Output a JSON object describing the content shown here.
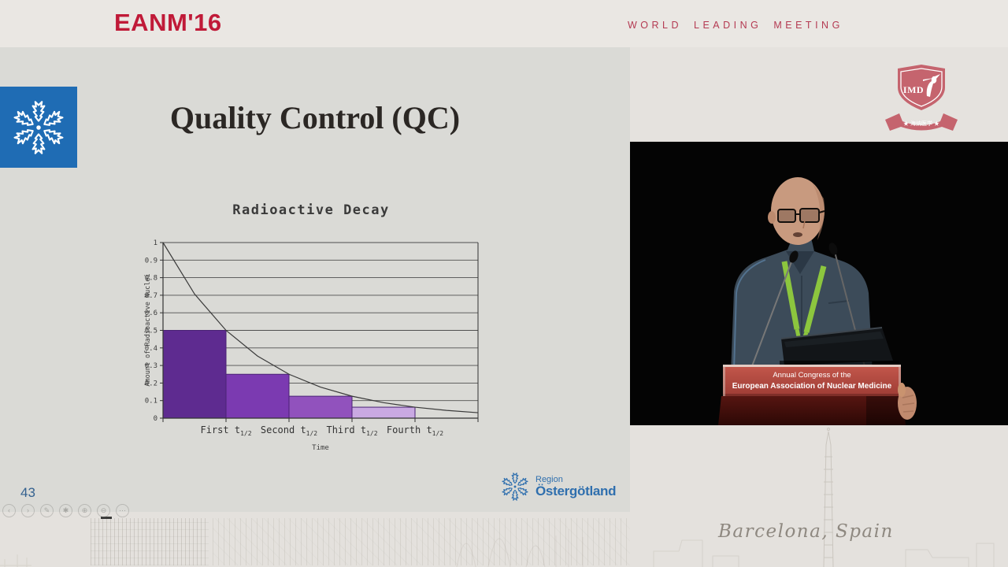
{
  "header": {
    "brand": "EANM'16",
    "tagline": "WORLD LEADING MEETING"
  },
  "slide": {
    "title": "Quality Control (QC)",
    "page_number": "43"
  },
  "footer_logo": {
    "line1": "Region",
    "line2": "Östergötland"
  },
  "chart_data": {
    "type": "bar",
    "title": "Radioactive Decay",
    "xlabel": "Time",
    "ylabel": "Amount of Radioactive Nuclei",
    "categories": [
      "First",
      "Second",
      "Third",
      "Fourth"
    ],
    "category_unit": "t",
    "category_subscript": "1/2",
    "values": [
      0.5,
      0.25,
      0.125,
      0.0625
    ],
    "bar_colors": [
      "#5e2b90",
      "#7b3ab1",
      "#9152bd",
      "#c9a9e2"
    ],
    "bar_border": "#4a2375",
    "curve_samples": [
      [
        0,
        1
      ],
      [
        0.5,
        0.7071
      ],
      [
        1,
        0.5
      ],
      [
        1.5,
        0.3536
      ],
      [
        2,
        0.25
      ],
      [
        2.5,
        0.1768
      ],
      [
        3,
        0.125
      ],
      [
        3.5,
        0.0884
      ],
      [
        4,
        0.0625
      ],
      [
        4.5,
        0.0442
      ],
      [
        5,
        0.0312
      ]
    ],
    "ylim": [
      0,
      1
    ],
    "ytick_step": 0.1,
    "x_slots": 5,
    "grid": true,
    "axis_color": "#4f4f4f",
    "legend": "none"
  },
  "video": {
    "podium_banner_line1": "Annual Congress of the",
    "podium_banner_line2": "European Association of Nuclear Medicine"
  },
  "overlay": {
    "imd_label": "IMD",
    "imd_ribbon": "★ 海纳医学 ★",
    "location": "Barcelona, Spain"
  },
  "toolbar": {
    "icons": [
      {
        "name": "prev",
        "glyph": "‹"
      },
      {
        "name": "next",
        "glyph": "›"
      },
      {
        "name": "pen",
        "glyph": "✎"
      },
      {
        "name": "laser",
        "glyph": "✱"
      },
      {
        "name": "zoom-in",
        "glyph": "⊕"
      },
      {
        "name": "zoom-out",
        "glyph": "⊖"
      },
      {
        "name": "more",
        "glyph": "⋯"
      }
    ]
  },
  "colors": {
    "brand_red": "#c01a38",
    "region_blue": "#2f6fae",
    "imd_rose": "#c5646e",
    "lanyard_green": "#8cc63e",
    "podium_banner_red": "#b04840"
  }
}
